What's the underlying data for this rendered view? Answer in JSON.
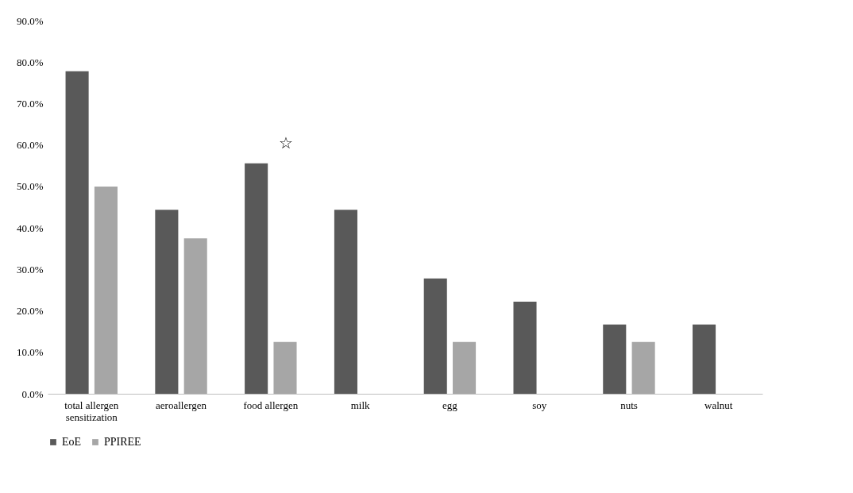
{
  "chart_data": {
    "type": "bar",
    "categories": [
      "total allergen sensitization",
      "aeroallergen",
      "food allergen",
      "milk",
      "egg",
      "soy",
      "nuts",
      "walnut"
    ],
    "series": [
      {
        "name": "EoE",
        "color": "#595959",
        "values": [
          77.8,
          44.4,
          55.6,
          44.4,
          27.8,
          22.2,
          16.7,
          16.7
        ]
      },
      {
        "name": "PPIREE",
        "color": "#a6a6a6",
        "values": [
          50.0,
          37.5,
          12.5,
          0,
          12.5,
          0,
          12.5,
          0
        ]
      }
    ],
    "ylim": [
      0,
      90
    ],
    "yticks": [
      {
        "value": 0,
        "label": "0.0%"
      },
      {
        "value": 10,
        "label": "10.0%"
      },
      {
        "value": 20,
        "label": "20.0%"
      },
      {
        "value": 30,
        "label": "30.0%"
      },
      {
        "value": 40,
        "label": "40.0%"
      },
      {
        "value": 50,
        "label": "50.0%"
      },
      {
        "value": 60,
        "label": "60.0%"
      },
      {
        "value": 70,
        "label": "70.0%"
      },
      {
        "value": 80,
        "label": "80.0%"
      },
      {
        "value": 90,
        "label": "90.0%"
      }
    ],
    "annotations": [
      "☆"
    ],
    "grid": false,
    "legend": "bottom"
  }
}
